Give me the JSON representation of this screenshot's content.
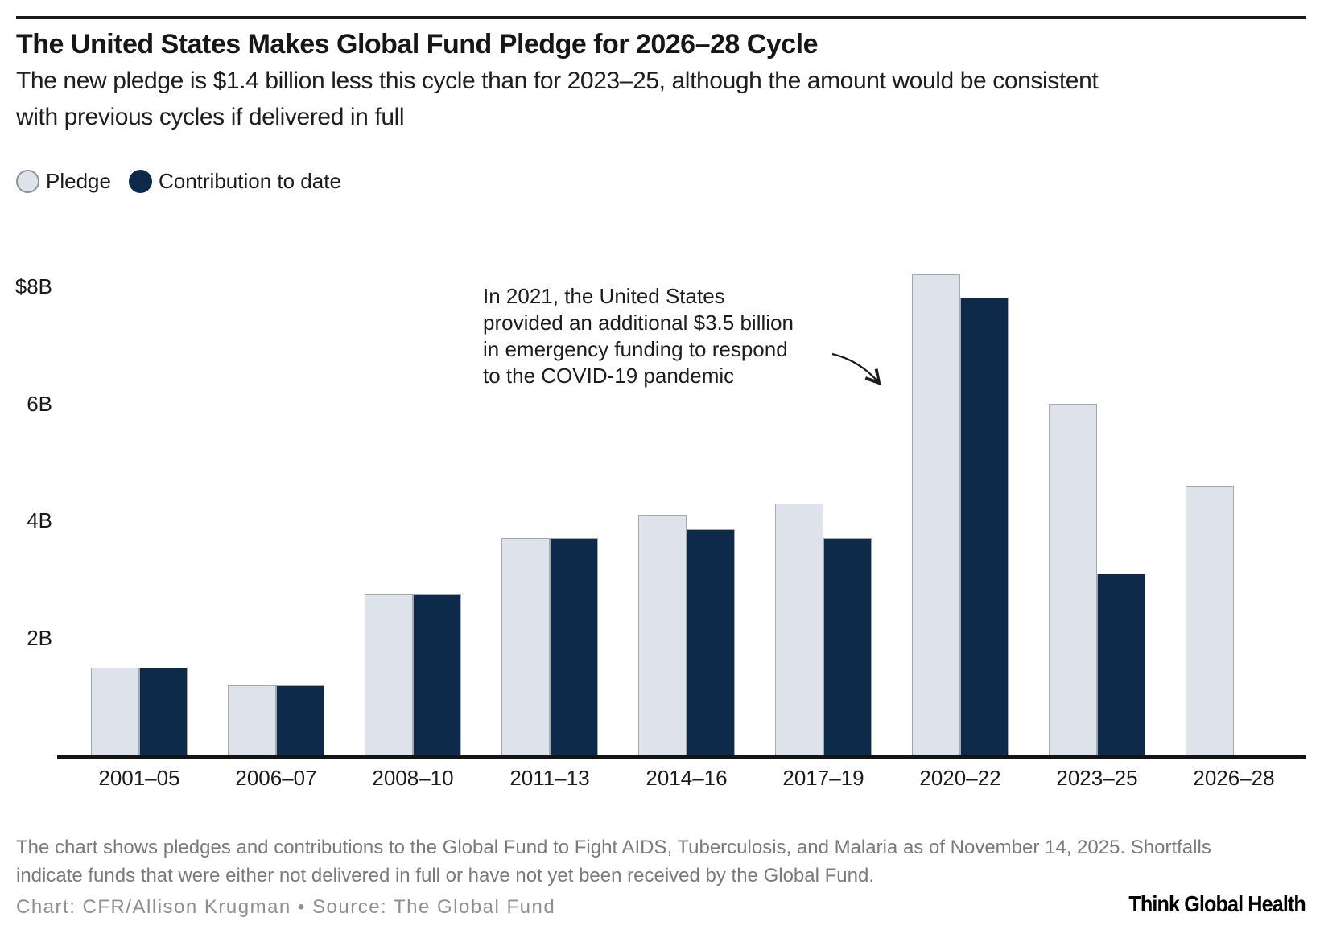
{
  "header": {
    "title": "The United States Makes Global Fund Pledge for 2026–28 Cycle",
    "subtitle_lines": [
      "The new pledge is $1.4 billion less this cycle than for 2023–25, although the amount would be consistent",
      "with previous cycles if delivered in full"
    ]
  },
  "legend": {
    "items": [
      {
        "label": "Pledge",
        "swatch_color": "#dee2ea",
        "swatch_border": "#8d939c"
      },
      {
        "label": "Contribution to date",
        "swatch_color": "#0d2a4a",
        "swatch_border": "#0d2a4a"
      }
    ]
  },
  "annotation": {
    "text": "In 2021, the United States provided an additional $3.5 billion in emergency funding to respond to the COVID-19 pandemic",
    "lines": [
      "In 2021, the United States",
      "provided an additional $3.5 billion",
      "in emergency funding to respond",
      "to the COVID-19 pandemic"
    ]
  },
  "chart_data": {
    "type": "bar",
    "title": "The United States Makes Global Fund Pledge for 2026–28 Cycle",
    "categories": [
      "2001–05",
      "2006–07",
      "2008–10",
      "2011–13",
      "2014–16",
      "2017–19",
      "2020–22",
      "2023–25",
      "2026–28"
    ],
    "series": [
      {
        "name": "Pledge",
        "color": "#dee2ea",
        "values": [
          1.5,
          1.2,
          2.75,
          3.7,
          4.1,
          4.3,
          8.2,
          6.0,
          4.6
        ]
      },
      {
        "name": "Contribution to date",
        "color": "#0d2a4a",
        "values": [
          1.5,
          1.2,
          2.75,
          3.7,
          3.85,
          3.7,
          7.8,
          3.1,
          null
        ]
      }
    ],
    "unit_label": "$B",
    "yticks": [
      {
        "value": 8,
        "label": "$8B"
      },
      {
        "value": 6,
        "label": "6B"
      },
      {
        "value": 4,
        "label": "4B"
      },
      {
        "value": 2,
        "label": "2B"
      }
    ],
    "ylim": [
      0,
      8.6
    ],
    "xlabel": "",
    "ylabel": "",
    "grid": false,
    "legend_position": "top-left"
  },
  "footer": {
    "note_lines": [
      "The chart shows pledges and contributions to the Global Fund to Fight AIDS, Tuberculosis, and Malaria as of November 14, 2025. Shortfalls",
      "indicate funds that were either not delivered in full or have not yet been received by the Global Fund."
    ],
    "credit": "Chart: CFR/Allison Krugman • Source: The Global Fund",
    "brand": "Think Global Health"
  }
}
